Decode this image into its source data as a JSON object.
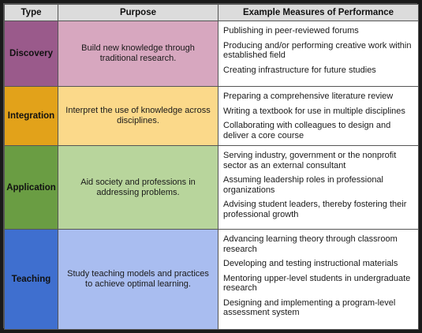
{
  "headers": {
    "type": "Type",
    "purpose": "Purpose",
    "measures": "Example Measures of Performance"
  },
  "rows": [
    {
      "type": "Discovery",
      "purpose": "Build new knowledge through traditional research.",
      "type_color": "#9a5a8b",
      "purpose_color": "#d7a7bf",
      "measures": [
        "Publishing in peer-reviewed forums",
        "Producing and/or performing creative work within established field",
        "Creating infrastructure for future studies"
      ]
    },
    {
      "type": "Integration",
      "purpose": "Interpret the use of knowledge across disciplines.",
      "type_color": "#e2a21a",
      "purpose_color": "#fbd98a",
      "measures": [
        "Preparing a comprehensive literature review",
        "Writing a textbook for use in multiple disciplines",
        "Collaborating with colleagues to design and deliver a core course"
      ]
    },
    {
      "type": "Application",
      "purpose": "Aid society and professions in addressing problems.",
      "type_color": "#6a9d43",
      "purpose_color": "#b8d59c",
      "measures": [
        "Serving industry, government or the nonprofit sector as an external consultant",
        "Assuming leadership roles in professional organizations",
        "Advising student leaders, thereby fostering their professional growth"
      ]
    },
    {
      "type": "Teaching",
      "purpose": "Study teaching models and practices to achieve optimal learning.",
      "type_color": "#3f6fcf",
      "purpose_color": "#a9bdf0",
      "measures": [
        "Advancing learning theory through classroom research",
        "Developing and testing instructional materials",
        "Mentoring upper-level students in undergraduate research",
        "Designing and implementing a program-level assessment system"
      ]
    }
  ]
}
